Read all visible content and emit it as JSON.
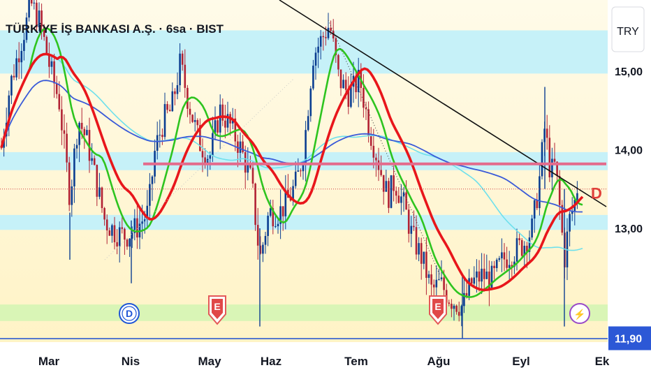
{
  "chart_data": {
    "type": "candlestick",
    "title": "TÜRKİYE İŞ BANKASI A.Ş. · 6sa · BIST",
    "currency": "TRY",
    "x_labels": [
      "Mar",
      "Nis",
      "May",
      "Haz",
      "Tem",
      "Ağu",
      "Eyl",
      "Ek"
    ],
    "y_ticks": [
      "15,00",
      "14,00",
      "13,00"
    ],
    "y_range": [
      11.6,
      15.85
    ],
    "current_price": "11,90",
    "reference_price": 13.5,
    "support_line": 13.82,
    "zones": [
      {
        "name": "resistance-zone",
        "from": 14.97,
        "to": 15.52
      },
      {
        "name": "resistance-zone-2",
        "from": 13.74,
        "to": 13.97
      },
      {
        "name": "support-zone-1",
        "from": 12.98,
        "to": 13.17
      },
      {
        "name": "support-zone-2",
        "from": 11.82,
        "to": 12.03
      }
    ],
    "event_markers": [
      {
        "label": "D",
        "kind": "dividend",
        "month": "Nis"
      },
      {
        "label": "E",
        "kind": "earnings",
        "month": "May"
      },
      {
        "label": "E",
        "kind": "earnings",
        "month": "Ağu"
      },
      {
        "label": "⚡",
        "kind": "split",
        "month": "Eyl"
      }
    ],
    "side_marker": "D",
    "colors": {
      "up": "#0a3d91",
      "down": "#b22234",
      "ma_green": "#2ec41f",
      "ma_red": "#e8161b",
      "ma_blue": "#3a5ad8",
      "ma_cyan": "#6ee0ec",
      "support": "#e46b8c",
      "zone_cyan": "#c6f1f8",
      "zone_green": "#d9f5b6",
      "price_line": "#1f4fd1"
    }
  }
}
